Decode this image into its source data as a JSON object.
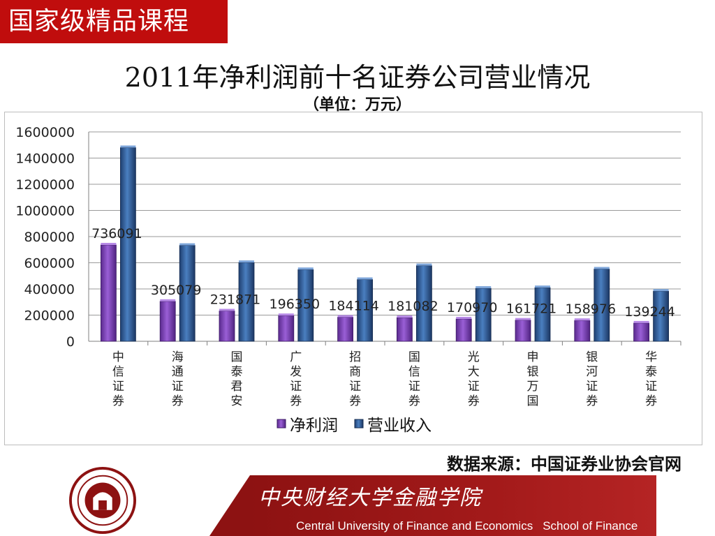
{
  "badge": "国家级精品课程",
  "title": "2011年净利润前十名证券公司营业情况",
  "subtitle": "（单位：万元）",
  "source": "数据来源：中国证券业协会官网",
  "footer": {
    "cn": "中央财经大学金融学院",
    "en_university": "Central University of Finance and Economics",
    "en_school": "School of Finance"
  },
  "chart_data": {
    "type": "bar",
    "categories": [
      "中信证券",
      "海通证券",
      "国泰君安",
      "广发证券",
      "招商证券",
      "国信证券",
      "光大证券",
      "申银万国",
      "银河证券",
      "华泰证券"
    ],
    "series": [
      {
        "name": "净利润",
        "values": [
          736091,
          305079,
          231871,
          196350,
          184114,
          181082,
          170970,
          161721,
          158976,
          139244
        ],
        "color": "#7b3fb5"
      },
      {
        "name": "营业收入",
        "values": [
          1480000,
          733000,
          602000,
          548000,
          472000,
          578000,
          405000,
          410000,
          552000,
          383000
        ],
        "color": "#2e5d99"
      }
    ],
    "data_labels_series": 0,
    "yticks": [
      0,
      200000,
      400000,
      600000,
      800000,
      1000000,
      1200000,
      1400000,
      1600000
    ],
    "ylim": [
      0,
      1600000
    ],
    "grid": true,
    "legend": "bottom"
  }
}
